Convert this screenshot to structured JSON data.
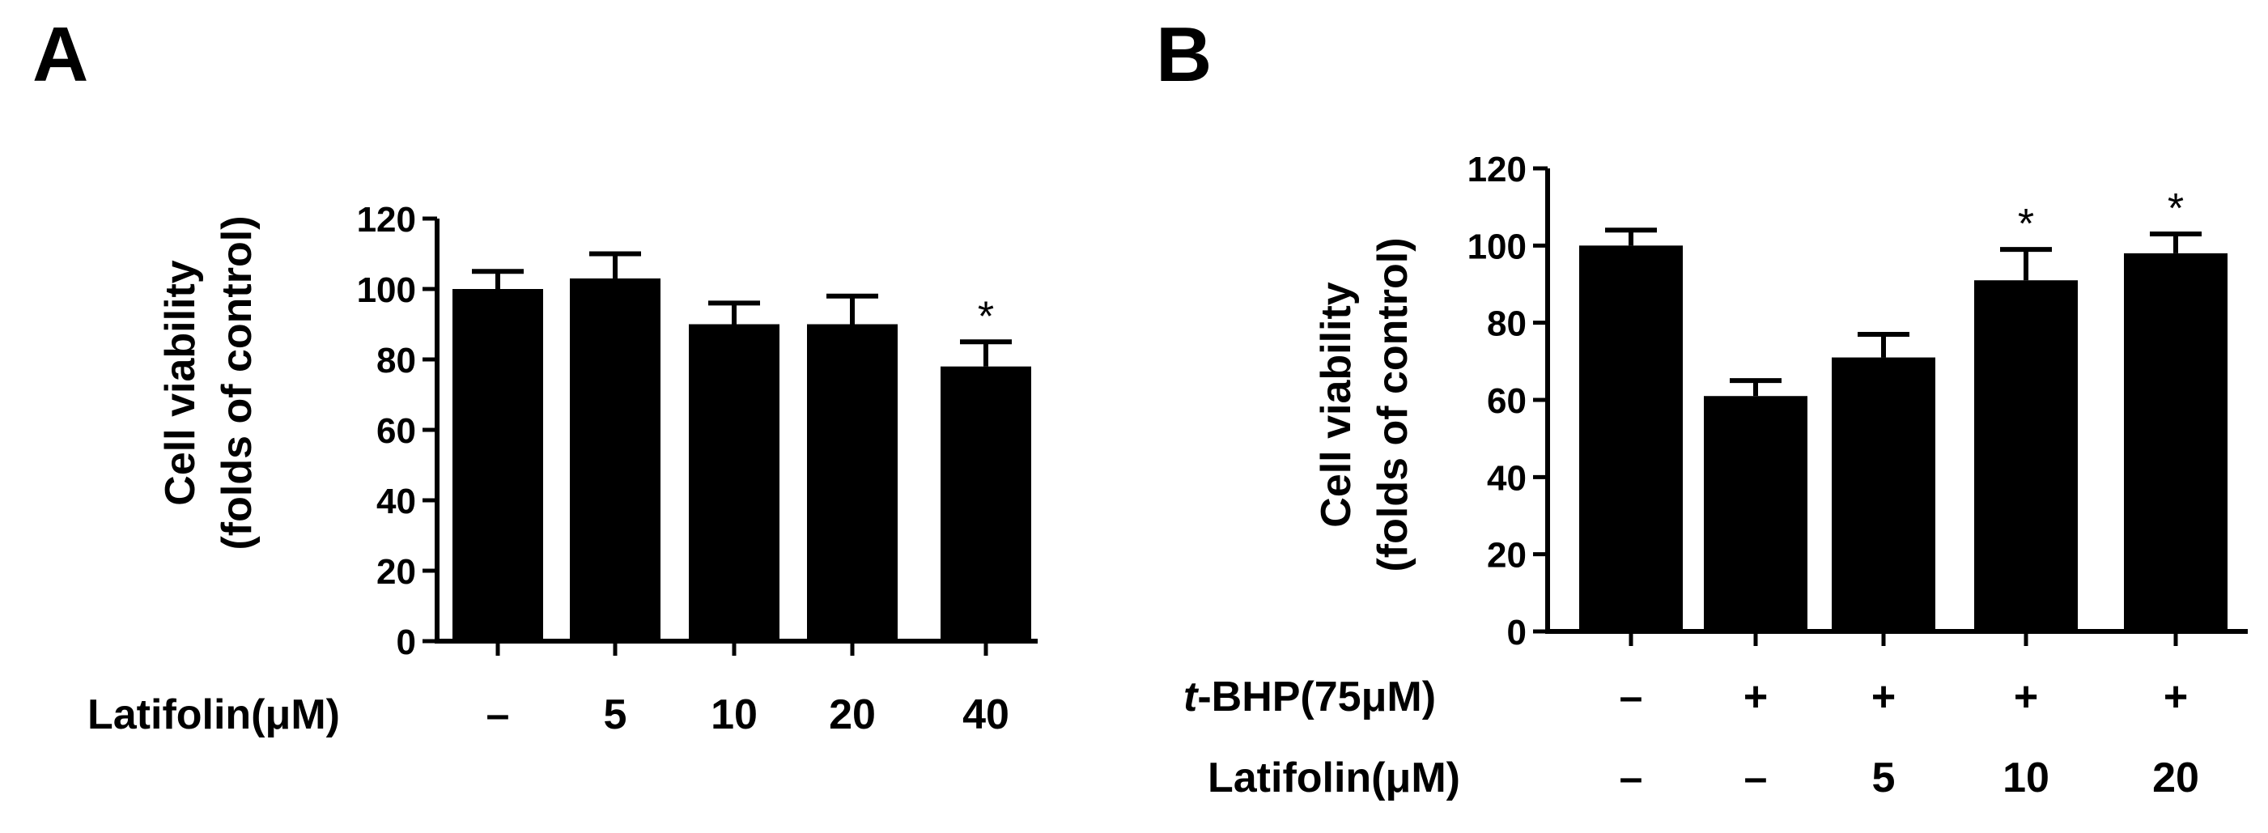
{
  "chart_data": [
    {
      "panel_label": "A",
      "type": "bar",
      "ylabel_line1": "Cell viability",
      "ylabel_line2": "(folds of control)",
      "ylim": [
        0,
        120
      ],
      "yticks": [
        "0",
        "20",
        "40",
        "60",
        "80",
        "100",
        "120"
      ],
      "grid": false,
      "legend": "none",
      "bar_color": "#000000",
      "treatment_rows": [
        {
          "label": "Latifolin(μM)",
          "italic_prefix": "",
          "values": [
            "–",
            "5",
            "10",
            "20",
            "40"
          ]
        }
      ],
      "values": [
        100,
        103,
        90,
        90,
        78
      ],
      "errors": [
        5,
        7,
        6,
        8,
        7
      ],
      "annotations": [
        "",
        "",
        "",
        "",
        "*"
      ]
    },
    {
      "panel_label": "B",
      "type": "bar",
      "ylabel_line1": "Cell viability",
      "ylabel_line2": "(folds of control)",
      "ylim": [
        0,
        120
      ],
      "yticks": [
        "0",
        "20",
        "40",
        "60",
        "80",
        "100",
        "120"
      ],
      "grid": false,
      "legend": "none",
      "bar_color": "#000000",
      "treatment_rows": [
        {
          "label": "-BHP(75μM)",
          "italic_prefix": "t",
          "values": [
            "–",
            "+",
            "+",
            "+",
            "+"
          ]
        },
        {
          "label": "Latifolin(μM)",
          "italic_prefix": "",
          "values": [
            "–",
            "–",
            "5",
            "10",
            "20"
          ]
        }
      ],
      "values": [
        100,
        61,
        71,
        91,
        98
      ],
      "errors": [
        4,
        4,
        6,
        8,
        5
      ],
      "annotations": [
        "",
        "",
        "",
        "*",
        "*"
      ]
    }
  ]
}
